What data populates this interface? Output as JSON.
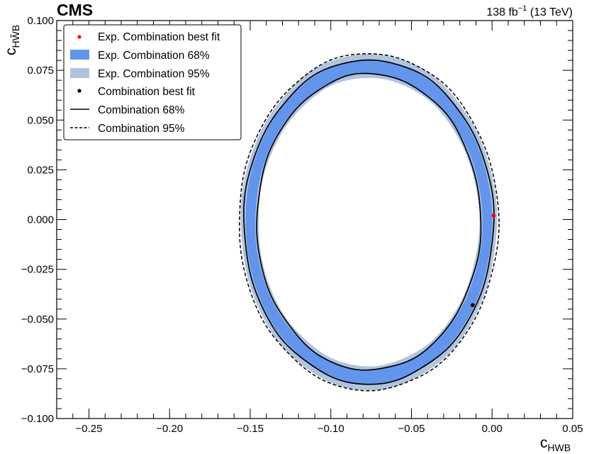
{
  "header": {
    "experiment": "CMS",
    "luminosity_value": "138 fb",
    "luminosity_exponent": "−1",
    "energy": "(13 TeV)"
  },
  "chart_data": {
    "type": "contour",
    "xlabel": {
      "main": "c",
      "sub": "HWB"
    },
    "ylabel": {
      "main": "c",
      "sub": "HW̃B"
    },
    "xlim": [
      -0.27,
      0.05
    ],
    "ylim": [
      -0.1,
      0.1
    ],
    "x_ticks": [
      {
        "value": -0.25,
        "label": "−0.25"
      },
      {
        "value": -0.2,
        "label": "−0.20"
      },
      {
        "value": -0.15,
        "label": "−0.15"
      },
      {
        "value": -0.1,
        "label": "−0.10"
      },
      {
        "value": -0.05,
        "label": "−0.05"
      },
      {
        "value": 0.0,
        "label": "0.00"
      },
      {
        "value": 0.05,
        "label": "0.05"
      }
    ],
    "y_ticks": [
      {
        "value": -0.1,
        "label": "−0.100"
      },
      {
        "value": -0.075,
        "label": "−0.075"
      },
      {
        "value": -0.05,
        "label": "−0.050"
      },
      {
        "value": -0.025,
        "label": "−0.025"
      },
      {
        "value": 0.0,
        "label": "0.000"
      },
      {
        "value": 0.025,
        "label": "0.025"
      },
      {
        "value": 0.05,
        "label": "0.050"
      },
      {
        "value": 0.075,
        "label": "0.075"
      },
      {
        "value": 0.1,
        "label": "0.100"
      }
    ],
    "grid": false,
    "legend_position": "top-left",
    "colors": {
      "exp_68": "#6495ed",
      "exp_95": "#b0c4de",
      "exp_best_fit": "#ff0000",
      "obs": "#000000"
    },
    "legend": [
      {
        "label": "Exp. Combination best fit",
        "style": "red-dot"
      },
      {
        "label": "Exp. Combination 68%",
        "style": "blue-box"
      },
      {
        "label": "Exp. Combination 95%",
        "style": "lightblue-box"
      },
      {
        "label": "Combination best fit",
        "style": "black-dot"
      },
      {
        "label": "Combination 68%",
        "style": "solid-line"
      },
      {
        "label": "Combination 95%",
        "style": "dashed-line"
      }
    ],
    "exp_best_fit": {
      "x": 0.001,
      "y": 0.002
    },
    "obs_best_fit": {
      "x": -0.012,
      "y": -0.043
    },
    "contours": {
      "center": {
        "x": -0.0765,
        "y": -0.0012
      },
      "exp_68": {
        "outer": [
          0.0765,
          0.0815
        ],
        "inner": [
          0.0705,
          0.0745
        ]
      },
      "exp_95": {
        "outer": [
          0.0795,
          0.0845
        ],
        "inner": [
          0.0685,
          0.0725
        ]
      },
      "obs_68": {
        "outer": [
          0.0775,
          0.0815
        ],
        "inner": [
          0.0695,
          0.0745
        ]
      },
      "obs_95": {
        "outer": [
          0.0805,
          0.0847
        ],
        "inner": null
      }
    }
  }
}
